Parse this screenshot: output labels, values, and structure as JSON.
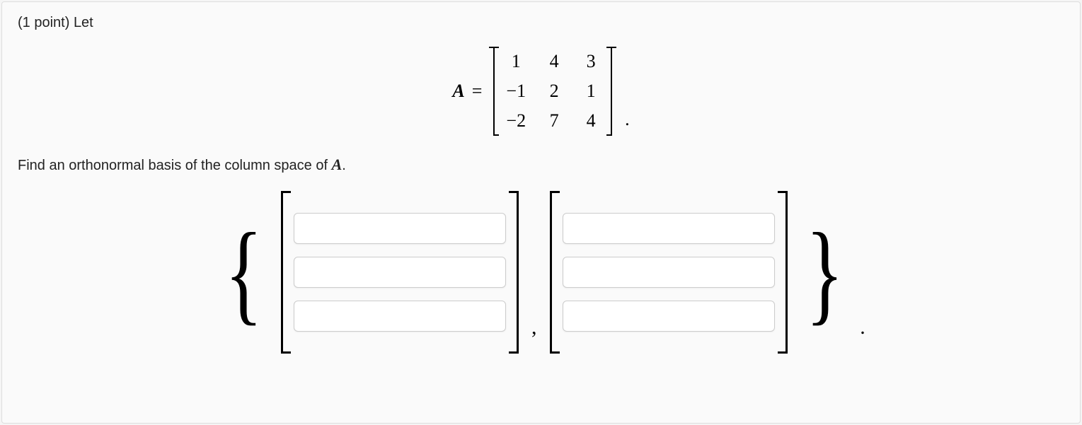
{
  "problem": {
    "points_prefix": "(1 point) ",
    "intro": "Let",
    "matrix_label": "A",
    "equals": "=",
    "matrix_rows": [
      [
        "1",
        "4",
        "3"
      ],
      [
        "−1",
        "2",
        "1"
      ],
      [
        "−2",
        "7",
        "4"
      ]
    ],
    "matrix_period": ".",
    "instruction_prefix": "Find an orthonormal basis of the column space of ",
    "instruction_var": "A",
    "instruction_suffix": ".",
    "set_open": "{",
    "set_close": "}",
    "comma": ",",
    "end_period": ".",
    "answer_vectors": [
      {
        "entries": [
          "",
          "",
          ""
        ]
      },
      {
        "entries": [
          "",
          "",
          ""
        ]
      }
    ]
  },
  "styling": {
    "background_color": "#fafafa",
    "border_color": "#dddddd",
    "text_color": "#222222",
    "input_border": "#cccccc",
    "input_bg": "#ffffff",
    "math_font": "Times New Roman",
    "body_font": "Arial",
    "intro_fontsize": 20,
    "matrix_fontsize": 26,
    "curly_fontsize": 160,
    "input_width": 300,
    "input_height": 44,
    "container_width": 1525,
    "container_height": 597
  }
}
